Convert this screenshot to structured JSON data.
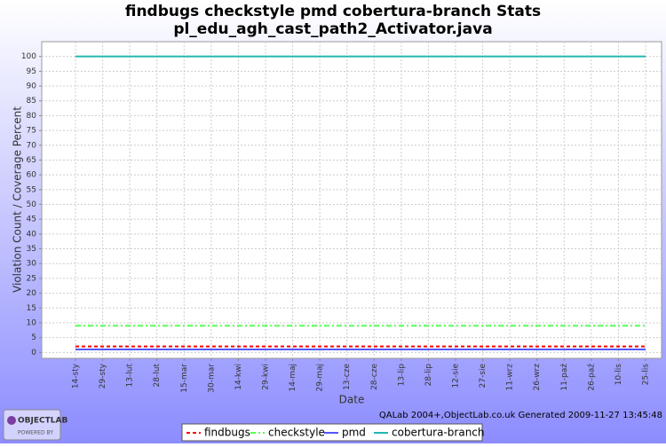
{
  "chart_data": {
    "type": "line",
    "title": "findbugs checkstyle pmd cobertura-branch  Stats",
    "subtitle": "pl_edu_agh_cast_path2_Activator.java",
    "x_label": "Date",
    "y_label": "Violation Count / Coverage Percent",
    "categories": [
      "14-sty",
      "29-sty",
      "13-lut",
      "28-lut",
      "15-mar",
      "30-mar",
      "14-kwi",
      "29-kwi",
      "14-maj",
      "29-maj",
      "13-cze",
      "28-cze",
      "13-lip",
      "28-lip",
      "12-sie",
      "27-sie",
      "11-wrz",
      "26-wrz",
      "11-paź",
      "26-paź",
      "10-lis",
      "25-lis"
    ],
    "series": [
      {
        "name": "findbugs",
        "color": "#ff0000",
        "dash": "4,3",
        "values": [
          2,
          2,
          2,
          2,
          2,
          2,
          2,
          2,
          2,
          2,
          2,
          2,
          2,
          2,
          2,
          2,
          2,
          2,
          2,
          2,
          2,
          2
        ]
      },
      {
        "name": "checkstyle",
        "color": "#55ff55",
        "dash": "6,3,2,3",
        "values": [
          9,
          9,
          9,
          9,
          9,
          9,
          9,
          9,
          9,
          9,
          9,
          9,
          9,
          9,
          9,
          9,
          9,
          9,
          9,
          9,
          9,
          9
        ]
      },
      {
        "name": "pmd",
        "color": "#5555ff",
        "dash": "none",
        "values": [
          1,
          1,
          1,
          1,
          1,
          1,
          1,
          1,
          1,
          1,
          1,
          1,
          1,
          1,
          1,
          1,
          1,
          1,
          1,
          1,
          1,
          1
        ]
      },
      {
        "name": "cobertura-branch",
        "color": "#20b8b0",
        "dash": "none",
        "values": [
          100,
          100,
          100,
          100,
          100,
          100,
          100,
          100,
          100,
          100,
          100,
          100,
          100,
          100,
          100,
          100,
          100,
          100,
          100,
          100,
          100,
          100
        ]
      }
    ],
    "ylim": [
      -2,
      105
    ],
    "yticks": [
      0,
      5,
      10,
      15,
      20,
      25,
      30,
      35,
      40,
      45,
      50,
      55,
      60,
      65,
      70,
      75,
      80,
      85,
      90,
      95,
      100
    ],
    "grid": true,
    "legend": "bottom",
    "footer": "QALab 2004+,ObjectLab.co.uk Generated 2009-11-27 13:45:48",
    "logo": {
      "name": "OBJECTLAB",
      "tagline": "POWERED BY"
    }
  }
}
